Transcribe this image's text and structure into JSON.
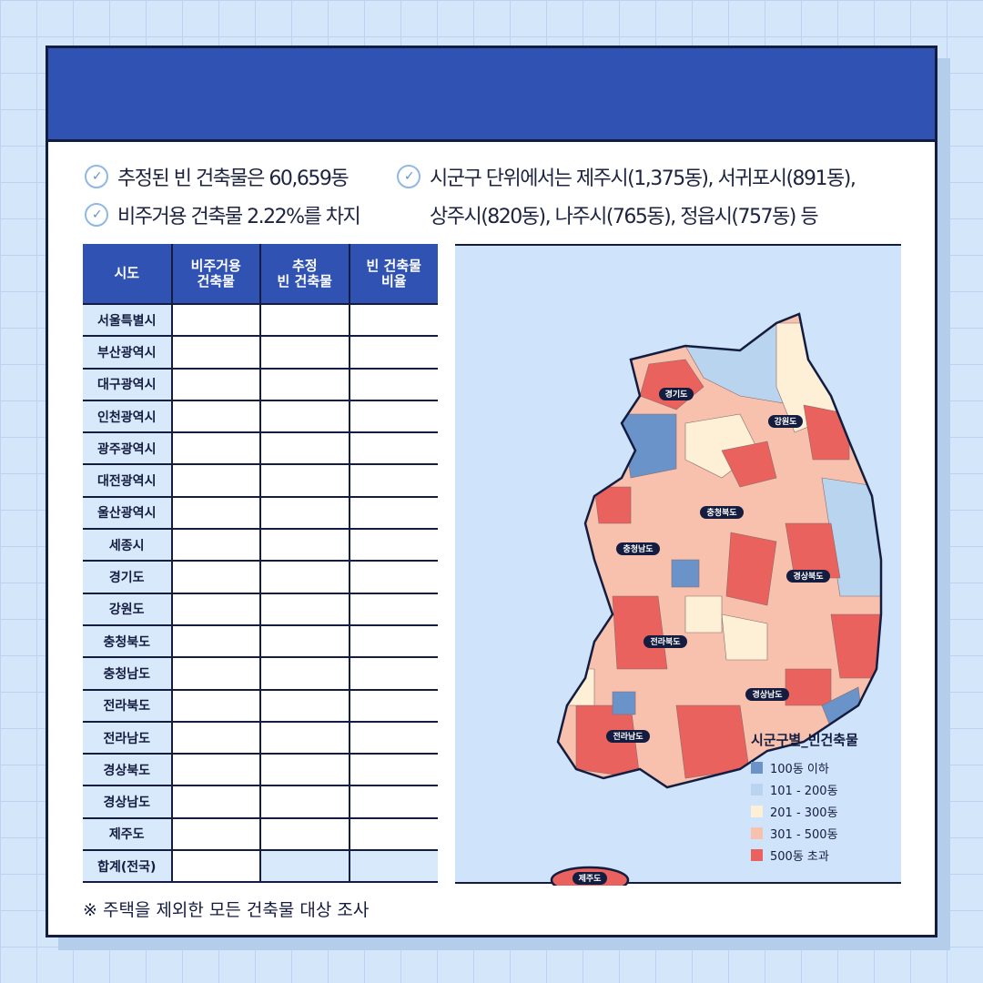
{
  "bullets": {
    "b1": "추정된 빈 건축물은 60,659동",
    "b2": "비주거용 건축물 2.22%를 차지",
    "b3": "시군구 단위에서는 제주시(1,375동), 서귀포시(891동),",
    "b4": "상주시(820동), 나주시(765동), 정읍시(757동) 등",
    "icon": "check-circle-icon"
  },
  "table": {
    "headers": [
      "시도",
      "비주거용\n건축물",
      "추정\n빈 건축물",
      "빈 건축물\n비율"
    ],
    "rows": [
      "서울특별시",
      "부산광역시",
      "대구광역시",
      "인천광역시",
      "광주광역시",
      "대전광역시",
      "울산광역시",
      "세종시",
      "경기도",
      "강원도",
      "충청북도",
      "충청남도",
      "전라북도",
      "전라남도",
      "경상북도",
      "경상남도",
      "제주도",
      "합계(전국)"
    ]
  },
  "note": "※ 주택을 제외한 모든 건축물 대상 조사",
  "map": {
    "regions": [
      "경기도",
      "강원도",
      "충청북도",
      "충청남도",
      "경상북도",
      "전라북도",
      "경상남도",
      "전라남도",
      "제주도"
    ],
    "legend_title": "시군구별_빈건축물",
    "legend": [
      {
        "label": "100동 이하",
        "color": "#6a93c9"
      },
      {
        "label": "101 - 200동",
        "color": "#b9d4ee"
      },
      {
        "label": "201 - 300동",
        "color": "#fdf0d6"
      },
      {
        "label": "301 - 500동",
        "color": "#f7c1ad"
      },
      {
        "label": "500동 초과",
        "color": "#e9625e"
      }
    ]
  },
  "colors": {
    "header": "#3052b3",
    "border": "#141c3f",
    "background": "#d3e6fa"
  }
}
